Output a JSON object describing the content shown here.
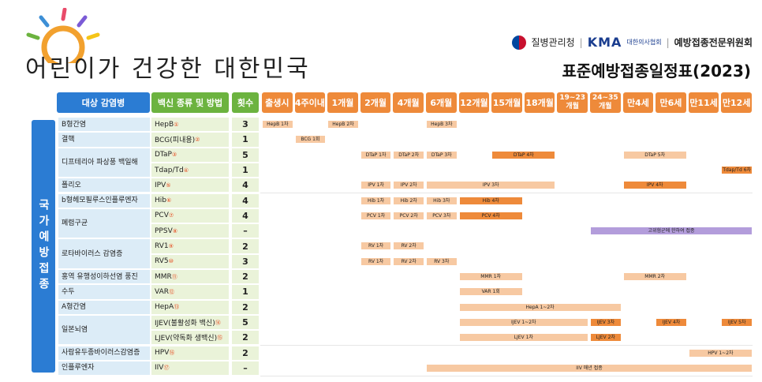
{
  "header": {
    "hand_title": "어린이가 건강한 대한민국",
    "org1": "질병관리청",
    "org2_mark": "KMA",
    "org2_sub": "대한의사협회",
    "org3": "예방접종전문위원회",
    "main_title": "표준예방접종일정표(2023)"
  },
  "columns": {
    "disease": "대상 감염병",
    "vaccine": "백신 종류 및 방법",
    "doses": "횟수",
    "ages": [
      "출생시",
      "4주이내",
      "1개월",
      "2개월",
      "4개월",
      "6개월",
      "12개월",
      "15개월",
      "18개월",
      "19~23 개월",
      "24~35 개월",
      "만4세",
      "만6세",
      "만11세",
      "만12세"
    ]
  },
  "side_label": "국가예방접종",
  "diseases": [
    {
      "label": "B형간염",
      "row": 0,
      "span": 1
    },
    {
      "label": "결핵",
      "row": 1,
      "span": 1
    },
    {
      "label": "디프테리아 파상풍 백일해",
      "row": 2,
      "span": 2
    },
    {
      "label": "폴리오",
      "row": 4,
      "span": 1
    },
    {
      "label": "b형헤모필루스인플루엔자",
      "row": 5,
      "span": 1
    },
    {
      "label": "폐렴구균",
      "row": 6,
      "span": 2
    },
    {
      "label": "로타바이러스 감염증",
      "row": 8,
      "span": 2
    },
    {
      "label": "홍역 유행성이하선염 풍진",
      "row": 10,
      "span": 1
    },
    {
      "label": "수두",
      "row": 11,
      "span": 1
    },
    {
      "label": "A형간염",
      "row": 12,
      "span": 1
    },
    {
      "label": "일본뇌염",
      "row": 13,
      "span": 2
    },
    {
      "label": "사람유두종바이러스감염증",
      "row": 15,
      "span": 1
    },
    {
      "label": "인플루엔자",
      "row": 16,
      "span": 1
    }
  ],
  "rows": [
    {
      "vaccine": "HepB",
      "note": "①",
      "doses": "3",
      "bars": [
        {
          "from": 0,
          "to": 1,
          "label": "HepB 1차",
          "tone": "light"
        },
        {
          "from": 2,
          "to": 3,
          "label": "HepB 2차",
          "tone": "light"
        },
        {
          "from": 5,
          "to": 6,
          "label": "HepB 3차",
          "tone": "light"
        }
      ]
    },
    {
      "vaccine": "BCG(피내용)",
      "note": "②",
      "doses": "1",
      "bars": [
        {
          "from": 1,
          "to": 2,
          "label": "BCG 1회",
          "tone": "light"
        }
      ]
    },
    {
      "vaccine": "DTaP",
      "note": "③",
      "doses": "5",
      "bars": [
        {
          "from": 3,
          "to": 4,
          "label": "DTaP 1차",
          "tone": "light"
        },
        {
          "from": 4,
          "to": 5,
          "label": "DTaP 2차",
          "tone": "light"
        },
        {
          "from": 5,
          "to": 6,
          "label": "DTaP 3차",
          "tone": "light"
        },
        {
          "from": 7,
          "to": 9,
          "label": "DTaP 4차",
          "tone": "dark"
        },
        {
          "from": 11,
          "to": 13,
          "label": "DTaP 5차",
          "tone": "light"
        }
      ]
    },
    {
      "vaccine": "Tdap/Td",
      "note": "④",
      "doses": "1",
      "bars": [
        {
          "from": 14,
          "to": 15,
          "label": "Tdap/Td 6차",
          "tone": "dark"
        }
      ]
    },
    {
      "vaccine": "IPV",
      "note": "⑤",
      "doses": "4",
      "bars": [
        {
          "from": 3,
          "to": 4,
          "label": "IPV 1차",
          "tone": "light"
        },
        {
          "from": 4,
          "to": 5,
          "label": "IPV 2차",
          "tone": "light"
        },
        {
          "from": 5,
          "to": 9,
          "label": "IPV 3차",
          "tone": "light"
        },
        {
          "from": 11,
          "to": 13,
          "label": "IPV 4차",
          "tone": "dark"
        }
      ]
    },
    {
      "vaccine": "Hib",
      "note": "⑥",
      "doses": "4",
      "bars": [
        {
          "from": 3,
          "to": 4,
          "label": "Hib 1차",
          "tone": "light"
        },
        {
          "from": 4,
          "to": 5,
          "label": "Hib 2차",
          "tone": "light"
        },
        {
          "from": 5,
          "to": 6,
          "label": "Hib 3차",
          "tone": "light"
        },
        {
          "from": 6,
          "to": 8,
          "label": "Hib 4차",
          "tone": "dark"
        }
      ]
    },
    {
      "vaccine": "PCV",
      "note": "⑦",
      "doses": "4",
      "bars": [
        {
          "from": 3,
          "to": 4,
          "label": "PCV 1차",
          "tone": "light"
        },
        {
          "from": 4,
          "to": 5,
          "label": "PCV 2차",
          "tone": "light"
        },
        {
          "from": 5,
          "to": 6,
          "label": "PCV 3차",
          "tone": "light"
        },
        {
          "from": 6,
          "to": 8,
          "label": "PCV 4차",
          "tone": "dark"
        }
      ]
    },
    {
      "vaccine": "PPSV",
      "note": "⑧",
      "doses": "–",
      "bars": [
        {
          "from": 10,
          "to": 15,
          "label": "고위험군에 한하여 접종",
          "tone": "purple"
        }
      ]
    },
    {
      "vaccine": "RV1",
      "note": "⑨",
      "doses": "2",
      "bars": [
        {
          "from": 3,
          "to": 4,
          "label": "RV 1차",
          "tone": "light"
        },
        {
          "from": 4,
          "to": 5,
          "label": "RV 2차",
          "tone": "light"
        }
      ]
    },
    {
      "vaccine": "RV5",
      "note": "⑩",
      "doses": "3",
      "bars": [
        {
          "from": 3,
          "to": 4,
          "label": "RV 1차",
          "tone": "light"
        },
        {
          "from": 4,
          "to": 5,
          "label": "RV 2차",
          "tone": "light"
        },
        {
          "from": 5,
          "to": 6,
          "label": "RV 3차",
          "tone": "light"
        }
      ]
    },
    {
      "vaccine": "MMR",
      "note": "⑪",
      "doses": "2",
      "bars": [
        {
          "from": 6,
          "to": 8,
          "label": "MMR 1차",
          "tone": "light"
        },
        {
          "from": 11,
          "to": 13,
          "label": "MMR 2차",
          "tone": "light"
        }
      ]
    },
    {
      "vaccine": "VAR",
      "note": "⑫",
      "doses": "1",
      "bars": [
        {
          "from": 6,
          "to": 8,
          "label": "VAR 1회",
          "tone": "light"
        }
      ]
    },
    {
      "vaccine": "HepA",
      "note": "⑬",
      "doses": "2",
      "bars": [
        {
          "from": 6,
          "to": 11,
          "label": "HepA 1~2차",
          "tone": "light"
        }
      ]
    },
    {
      "vaccine": "IJEV(불활성화 백신)",
      "note": "⑭",
      "doses": "5",
      "bars": [
        {
          "from": 6,
          "to": 10,
          "label": "IJEV 1~2차",
          "tone": "light"
        },
        {
          "from": 10,
          "to": 11,
          "label": "IJEV 3차",
          "tone": "dark"
        },
        {
          "from": 12,
          "to": 13,
          "label": "IJEV 4차",
          "tone": "dark"
        },
        {
          "from": 14,
          "to": 15,
          "label": "IJEV 5차",
          "tone": "dark"
        }
      ]
    },
    {
      "vaccine": "LJEV(약독화 생백신)",
      "note": "⑮",
      "doses": "2",
      "bars": [
        {
          "from": 6,
          "to": 10,
          "label": "LJEV 1차",
          "tone": "light"
        },
        {
          "from": 10,
          "to": 11,
          "label": "LJEV 2차",
          "tone": "dark"
        }
      ]
    },
    {
      "vaccine": "HPV",
      "note": "⑯",
      "doses": "2",
      "bars": [
        {
          "from": 13,
          "to": 15,
          "label": "HPV 1~2차",
          "tone": "light"
        }
      ]
    },
    {
      "vaccine": "IIV",
      "note": "⑰",
      "doses": "–",
      "bars": [
        {
          "from": 5,
          "to": 15,
          "label": "IIV 매년 접종",
          "tone": "light"
        }
      ]
    }
  ],
  "colors": {
    "blue": "#2b7cd3",
    "green": "#6cb33f",
    "orange": "#ee8a3a",
    "light_bar": "#f7c9a2",
    "purple": "#b39ddb"
  }
}
